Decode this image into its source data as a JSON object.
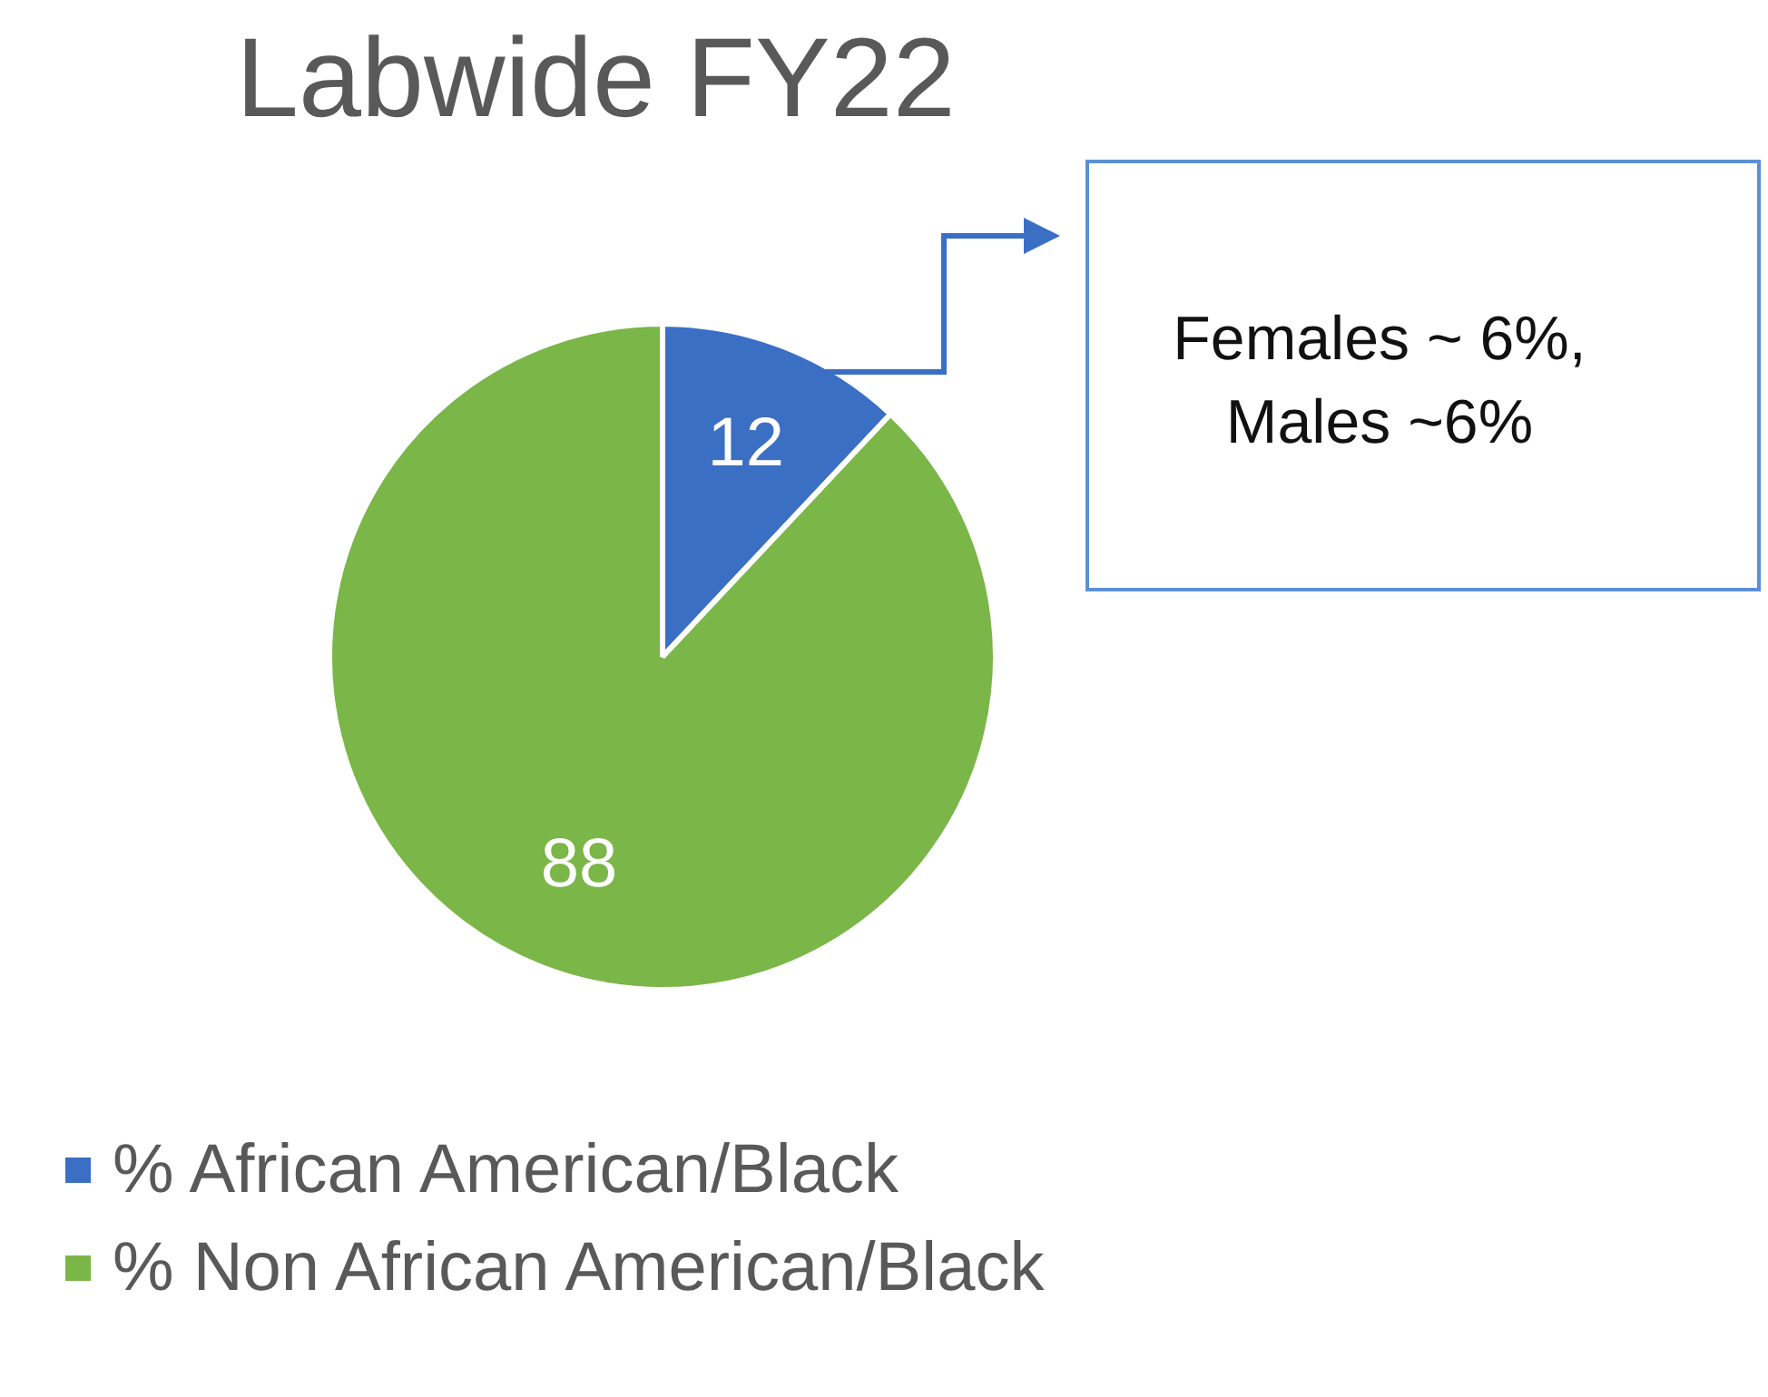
{
  "chart_data": {
    "type": "pie",
    "title": "Labwide FY22",
    "categories": [
      "% African American/Black",
      "% Non African American/Black"
    ],
    "values": [
      12,
      88
    ],
    "colors": [
      "#3a6fc4",
      "#7ab648"
    ],
    "data_labels": true,
    "legend": "bottom left",
    "annotations": [
      "Females ~ 6%, Males ~6%"
    ]
  }
}
